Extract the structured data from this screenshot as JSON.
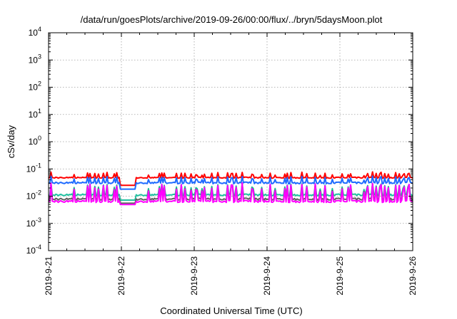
{
  "chart_data": {
    "type": "line",
    "title": "/data/run/goesPlots/archive/2019-09-26/00:00/flux/../bryn/5daysMoon.plot",
    "xlabel": "Coordinated Universal Time (UTC)",
    "ylabel": "cSv/day",
    "yscale": "log",
    "ylim": [
      0.0001,
      10000
    ],
    "xlim": [
      "2019-9-21",
      "2019-9-26"
    ],
    "x_ticks": [
      "2019-9-21",
      "2019-9-22",
      "2019-9-23",
      "2019-9-24",
      "2019-9-25",
      "2019-9-26"
    ],
    "y_ticks": [
      {
        "value": 0.0001,
        "base": "10",
        "exp": "-4"
      },
      {
        "value": 0.001,
        "base": "10",
        "exp": "-3"
      },
      {
        "value": 0.01,
        "base": "10",
        "exp": "-2"
      },
      {
        "value": 0.1,
        "base": "10",
        "exp": "-1"
      },
      {
        "value": 1,
        "base": "10",
        "exp": "0"
      },
      {
        "value": 10,
        "base": "10",
        "exp": "1"
      },
      {
        "value": 100,
        "base": "10",
        "exp": "2"
      },
      {
        "value": 1000,
        "base": "10",
        "exp": "3"
      },
      {
        "value": 10000,
        "base": "10",
        "exp": "4"
      }
    ],
    "grid": true,
    "series": [
      {
        "color": "#ff0000",
        "base": 0.05,
        "dip": 0.7,
        "spike": 1.5
      },
      {
        "color": "#1e6bff",
        "base": 0.033,
        "dip": 0.55,
        "spike": 1.6
      },
      {
        "color": "#20c0a0",
        "base": 0.012,
        "dip": 0.5,
        "spike": 2.5
      },
      {
        "color": "#606060",
        "base": 0.0085,
        "dip": 0.45,
        "spike": 3.5
      },
      {
        "color": "#ff00ff",
        "base": 0.007,
        "dip": 0.45,
        "spike": 4.5
      }
    ]
  }
}
